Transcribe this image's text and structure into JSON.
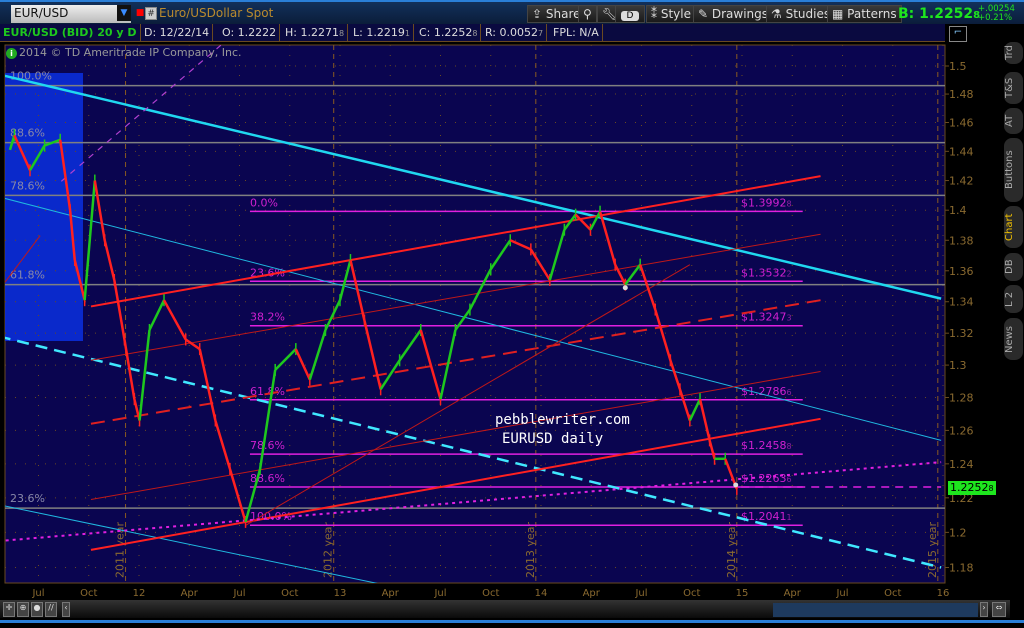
{
  "header": {
    "symbol": "EUR/USD",
    "description": "Euro/USDollar Spot",
    "toolbar": [
      "Share",
      "Style",
      "Drawings",
      "Studies",
      "Patterns"
    ],
    "aggregation_button": "D",
    "bid_label": "B: 1.2252",
    "bid_sub": "8",
    "change": "+.00254",
    "change_pct": "+0.21%"
  },
  "info": {
    "symbol": "EUR/USD (BID) 20 y D",
    "date": "D: 12/22/14",
    "open": "O: 1.2222",
    "high": "H: 1.2271",
    "high_sub": "8",
    "low": "L: 1.2219",
    "low_sub": "1",
    "close": "C: 1.2252",
    "close_sub": "8",
    "range": "R: 0.0052",
    "range_sub": "7",
    "fpl": "FPL: N/A"
  },
  "copyright": "2014 © TD Ameritrade IP Company, Inc.",
  "side_tabs": [
    {
      "label": "Trd"
    },
    {
      "label": "T&S"
    },
    {
      "label": "AT"
    },
    {
      "label": "Buttons"
    },
    {
      "label": "Chart",
      "active": true
    },
    {
      "label": "DB"
    },
    {
      "label": "L 2"
    },
    {
      "label": "News"
    }
  ],
  "watermark": [
    "pebblewriter.com",
    "EURUSD daily"
  ],
  "last_price": "1.2252",
  "last_price_sub": "8",
  "colors": {
    "background": "#0a0550",
    "up": "#1ec81e",
    "down": "#ff2020",
    "fib": "#e020e0",
    "cyan": "#20d8f0",
    "grid": "#6a4a20"
  },
  "chart_data": {
    "type": "candlestick",
    "scale": "log",
    "ylim": [
      1.17,
      1.51
    ],
    "xlim": [
      "2011-05-01",
      "2016-01-20"
    ],
    "y_ticks": [
      1.18,
      1.2,
      1.22,
      1.24,
      1.26,
      1.28,
      1.3,
      1.32,
      1.34,
      1.36,
      1.38,
      1.4,
      1.42,
      1.44,
      1.46,
      1.48,
      1.5
    ],
    "x_ticks": [
      {
        "label": "Jul",
        "date": "2011-07-01"
      },
      {
        "label": "Oct",
        "date": "2011-10-01"
      },
      {
        "label": "12",
        "date": "2012-01-01"
      },
      {
        "label": "Apr",
        "date": "2012-04-01"
      },
      {
        "label": "Jul",
        "date": "2012-07-01"
      },
      {
        "label": "Oct",
        "date": "2012-10-01"
      },
      {
        "label": "13",
        "date": "2013-01-01"
      },
      {
        "label": "Apr",
        "date": "2013-04-01"
      },
      {
        "label": "Jul",
        "date": "2013-07-01"
      },
      {
        "label": "Oct",
        "date": "2013-10-01"
      },
      {
        "label": "14",
        "date": "2014-01-01"
      },
      {
        "label": "Apr",
        "date": "2014-04-01"
      },
      {
        "label": "Jul",
        "date": "2014-07-01"
      },
      {
        "label": "Oct",
        "date": "2014-10-01"
      },
      {
        "label": "15",
        "date": "2015-01-01"
      },
      {
        "label": "Apr",
        "date": "2015-04-01"
      },
      {
        "label": "Jul",
        "date": "2015-07-01"
      },
      {
        "label": "Oct",
        "date": "2015-10-01"
      },
      {
        "label": "16",
        "date": "2016-01-01"
      }
    ],
    "year_markers": [
      {
        "label": "2011 year",
        "date": "2011-12-07"
      },
      {
        "label": "2012 year",
        "date": "2012-12-20"
      },
      {
        "label": "2013 year",
        "date": "2013-12-22"
      },
      {
        "label": "2014 year",
        "date": "2014-12-22"
      },
      {
        "label": "2015 year",
        "date": "2015-12-22"
      }
    ],
    "price_series": [
      [
        "2011-05-10",
        1.441
      ],
      [
        "2011-05-18",
        1.451
      ],
      [
        "2011-06-16",
        1.427
      ],
      [
        "2011-07-12",
        1.444
      ],
      [
        "2011-08-10",
        1.448
      ],
      [
        "2011-08-28",
        1.4
      ],
      [
        "2011-09-06",
        1.367
      ],
      [
        "2011-09-24",
        1.341
      ],
      [
        "2011-10-12",
        1.42
      ],
      [
        "2011-10-30",
        1.38
      ],
      [
        "2011-11-17",
        1.354
      ],
      [
        "2011-12-05",
        1.316
      ],
      [
        "2011-12-23",
        1.279
      ],
      [
        "2012-01-02",
        1.266
      ],
      [
        "2012-01-20",
        1.322
      ],
      [
        "2012-02-16",
        1.341
      ],
      [
        "2012-03-25",
        1.316
      ],
      [
        "2012-04-20",
        1.31
      ],
      [
        "2012-05-18",
        1.266
      ],
      [
        "2012-06-14",
        1.237
      ],
      [
        "2012-07-12",
        1.206
      ],
      [
        "2012-08-08",
        1.237
      ],
      [
        "2012-09-05",
        1.297
      ],
      [
        "2012-10-12",
        1.31
      ],
      [
        "2012-11-07",
        1.291
      ],
      [
        "2012-12-05",
        1.322
      ],
      [
        "2013-01-01",
        1.341
      ],
      [
        "2013-01-20",
        1.367
      ],
      [
        "2013-02-15",
        1.328
      ],
      [
        "2013-03-14",
        1.285
      ],
      [
        "2013-04-18",
        1.303
      ],
      [
        "2013-05-26",
        1.322
      ],
      [
        "2013-07-01",
        1.279
      ],
      [
        "2013-07-28",
        1.322
      ],
      [
        "2013-08-24",
        1.335
      ],
      [
        "2013-10-01",
        1.361
      ],
      [
        "2013-11-06",
        1.38
      ],
      [
        "2013-12-13",
        1.374
      ],
      [
        "2014-01-17",
        1.354
      ],
      [
        "2014-02-13",
        1.387
      ],
      [
        "2014-03-03",
        1.397
      ],
      [
        "2014-03-30",
        1.387
      ],
      [
        "2014-04-17",
        1.399
      ],
      [
        "2014-05-14",
        1.364
      ],
      [
        "2014-06-02",
        1.351
      ],
      [
        "2014-06-29",
        1.364
      ],
      [
        "2014-07-26",
        1.335
      ],
      [
        "2014-08-23",
        1.303
      ],
      [
        "2014-09-10",
        1.285
      ],
      [
        "2014-09-28",
        1.266
      ],
      [
        "2014-10-16",
        1.279
      ],
      [
        "2014-11-03",
        1.254
      ],
      [
        "2014-11-12",
        1.243
      ],
      [
        "2014-12-01",
        1.243
      ],
      [
        "2014-12-22",
        1.2252
      ]
    ],
    "fib_right": {
      "from": "2012-07-20",
      "to": "2015-04-20",
      "levels": [
        {
          "pct": "0.0%",
          "price": 1.3992,
          "label": "$1.3992",
          "sub": "8"
        },
        {
          "pct": "23.6%",
          "price": 1.3532,
          "label": "$1.3532",
          "sub": "2"
        },
        {
          "pct": "38.2%",
          "price": 1.3247,
          "label": "$1.3247",
          "sub": "3"
        },
        {
          "pct": "61.8%",
          "price": 1.2786,
          "label": "$1.2786",
          "sub": "6"
        },
        {
          "pct": "78.6%",
          "price": 1.2458,
          "label": "$1.2458",
          "sub": "8"
        },
        {
          "pct": "88.6%",
          "price": 1.2263,
          "label": "$1.2263",
          "sub": "6"
        },
        {
          "pct": "100.0%",
          "price": 1.2041,
          "label": "$1.2041",
          "sub": "1"
        }
      ]
    },
    "fib_left": [
      {
        "pct": "100.0%",
        "price": 1.486
      },
      {
        "pct": "88.6%",
        "price": 1.446
      },
      {
        "pct": "78.6%",
        "price": 1.41
      },
      {
        "pct": "61.8%",
        "price": 1.351
      },
      {
        "pct": "23.6%",
        "price": 1.214
      }
    ],
    "trendlines": [
      {
        "name": "cyan-main",
        "color": "#20d8f0",
        "w": 2.5,
        "p": [
          [
            "2011-04-20",
            1.494
          ],
          [
            "2015-12-28",
            1.342
          ]
        ]
      },
      {
        "name": "cyan-upper-thin",
        "color": "#20b8e0",
        "w": 1,
        "p": [
          [
            "2011-04-20",
            1.409
          ],
          [
            "2015-12-28",
            1.254
          ]
        ]
      },
      {
        "name": "cyan-lower-thin",
        "color": "#20b8e0",
        "w": 1,
        "p": [
          [
            "2011-04-20",
            1.216
          ],
          [
            "2013-05-26",
            1.166
          ]
        ]
      },
      {
        "name": "cyan-dashed",
        "color": "#40e8ff",
        "w": 2.5,
        "dash": "12 7",
        "p": [
          [
            "2011-04-20",
            1.318
          ],
          [
            "2015-12-28",
            1.18
          ]
        ]
      },
      {
        "name": "red-channel-upper",
        "color": "#ff2020",
        "w": 2,
        "p": [
          [
            "2011-10-05",
            1.337
          ],
          [
            "2015-05-22",
            1.423
          ]
        ]
      },
      {
        "name": "red-channel-lower",
        "color": "#ff2020",
        "w": 2,
        "p": [
          [
            "2011-10-05",
            1.19
          ],
          [
            "2015-05-22",
            1.267
          ]
        ]
      },
      {
        "name": "red-channel-mid",
        "color": "#e02020",
        "w": 2,
        "dash": "14 8",
        "p": [
          [
            "2011-10-05",
            1.264
          ],
          [
            "2015-05-22",
            1.341
          ]
        ]
      },
      {
        "name": "red-thin-lower",
        "color": "#c01818",
        "w": 1,
        "p": [
          [
            "2011-10-05",
            1.219
          ],
          [
            "2015-05-22",
            1.296
          ]
        ]
      },
      {
        "name": "red-thin-upper",
        "color": "#c01818",
        "w": 1,
        "p": [
          [
            "2011-10-05",
            1.303
          ],
          [
            "2015-05-22",
            1.384
          ]
        ]
      },
      {
        "name": "red-thin-diagonal",
        "color": "#c01818",
        "w": 1,
        "p": [
          [
            "2012-07-12",
            1.204
          ],
          [
            "2014-09-28",
            1.364
          ]
        ]
      },
      {
        "name": "red-thin-small",
        "color": "#c01818",
        "w": 1,
        "p": [
          [
            "2011-04-28",
            1.351
          ],
          [
            "2011-07-04",
            1.383
          ]
        ]
      },
      {
        "name": "magenta-dotted",
        "color": "#e020e0",
        "w": 2,
        "dash": "3 4",
        "p": [
          [
            "2011-04-20",
            1.195
          ],
          [
            "2015-12-28",
            1.241
          ]
        ]
      },
      {
        "name": "magenta-dashed-upper",
        "color": "#b040d0",
        "w": 1.2,
        "dash": "6 6",
        "p": [
          [
            "2011-08-12",
            1.4195
          ],
          [
            "2012-05-28",
            1.515
          ]
        ]
      },
      {
        "name": "magenta-dashed-right",
        "color": "#e020e0",
        "w": 1.5,
        "dash": "8 6",
        "p": [
          [
            "2014-12-30",
            1.2263
          ],
          [
            "2015-12-28",
            1.2263
          ]
        ]
      }
    ],
    "markers": [
      [
        "2014-06-02",
        1.349
      ],
      [
        "2014-12-20",
        1.2275
      ]
    ]
  }
}
